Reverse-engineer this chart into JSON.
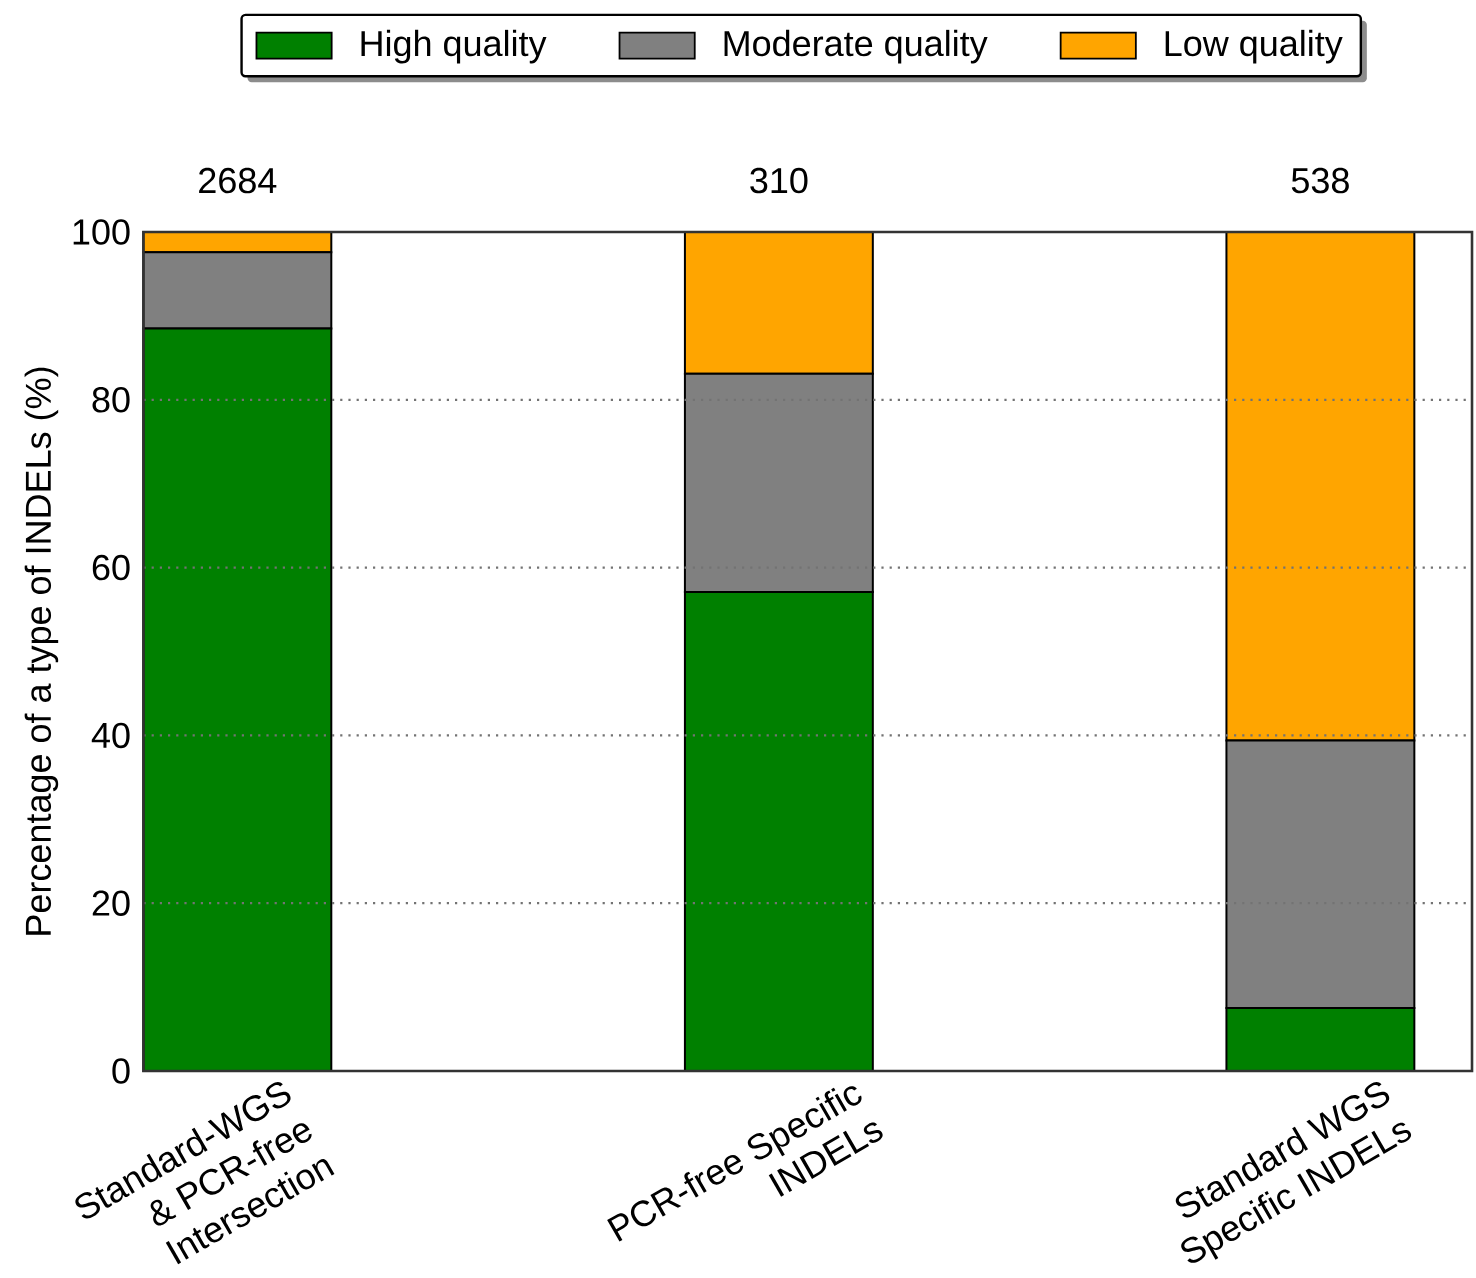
{
  "chart_data": {
    "type": "bar",
    "stacked": true,
    "categories": [
      "Standard-WGS & PCR-free Intersection",
      "PCR-free Specific INDELs",
      "Standard WGS Specific INDELs"
    ],
    "ylabel": "Percentage of a type of INDELs (%)",
    "ylim": [
      0,
      100
    ],
    "yticks": [
      0,
      20,
      40,
      60,
      80,
      100
    ],
    "series": [
      {
        "name": "High quality",
        "color": "#008000",
        "values": [
          88.5,
          57.1,
          7.5
        ]
      },
      {
        "name": "Moderate quality",
        "color": "#808080",
        "values": [
          9.1,
          26.0,
          31.9
        ]
      },
      {
        "name": "Low quality",
        "color": "#ffa500",
        "values": [
          2.4,
          16.9,
          60.6
        ]
      }
    ],
    "annotations": [
      "2684",
      "310",
      "538"
    ],
    "grid": "y",
    "legend": "top"
  }
}
